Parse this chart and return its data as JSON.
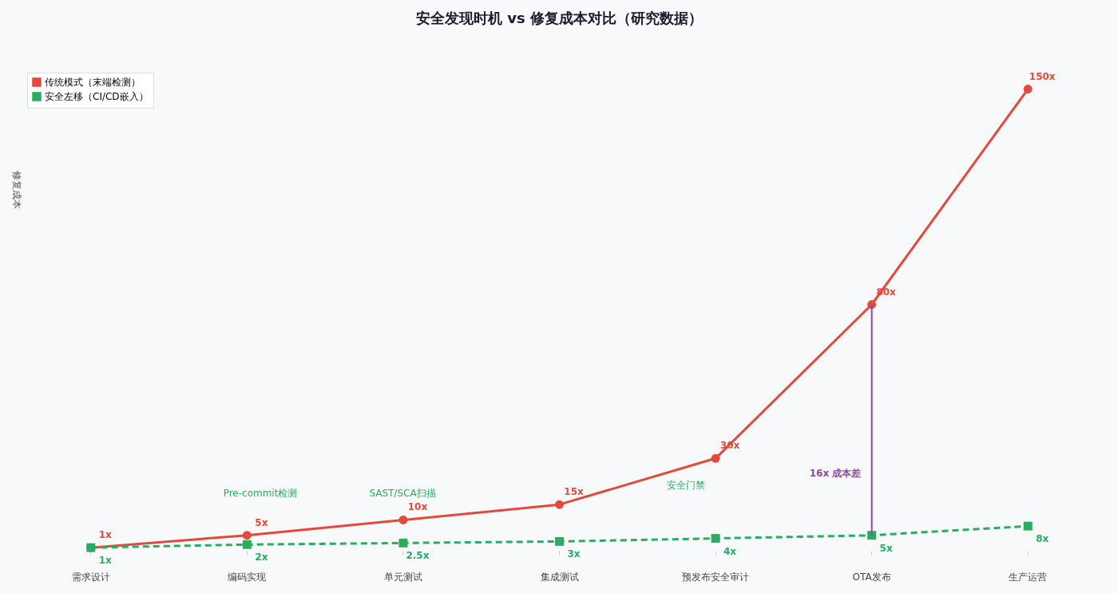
{
  "chart_data": {
    "type": "line",
    "title": "安全发现时机 vs 修复成本对比（研究数据）",
    "ylabel": "修复成本",
    "categories": [
      "需求设计",
      "编码实现",
      "单元测试",
      "集成测试",
      "预发布安全审计",
      "OTA发布",
      "生产运营"
    ],
    "series": [
      {
        "name": "传统模式（末端检测）",
        "color": "#e24a3b",
        "values": [
          1,
          5,
          10,
          15,
          30,
          80,
          150
        ],
        "value_labels": [
          "1x",
          "5x",
          "10x",
          "15x",
          "30x",
          "80x",
          "150x"
        ],
        "marker": "circle",
        "line_style": "solid"
      },
      {
        "name": "安全左移（CI/CD嵌入）",
        "color": "#27ae60",
        "values": [
          1,
          2,
          2.5,
          3,
          4,
          5,
          8
        ],
        "value_labels": [
          "1x",
          "2x",
          "2.5x",
          "3x",
          "4x",
          "5x",
          "8x"
        ],
        "marker": "square",
        "line_style": "dashed"
      }
    ],
    "tick_labels": "x",
    "grid": false,
    "legend": "top left",
    "annotations": [
      "Pre-commit检测",
      "SAST/SCA扫描",
      "安全门禁",
      "16x 成本差"
    ]
  }
}
